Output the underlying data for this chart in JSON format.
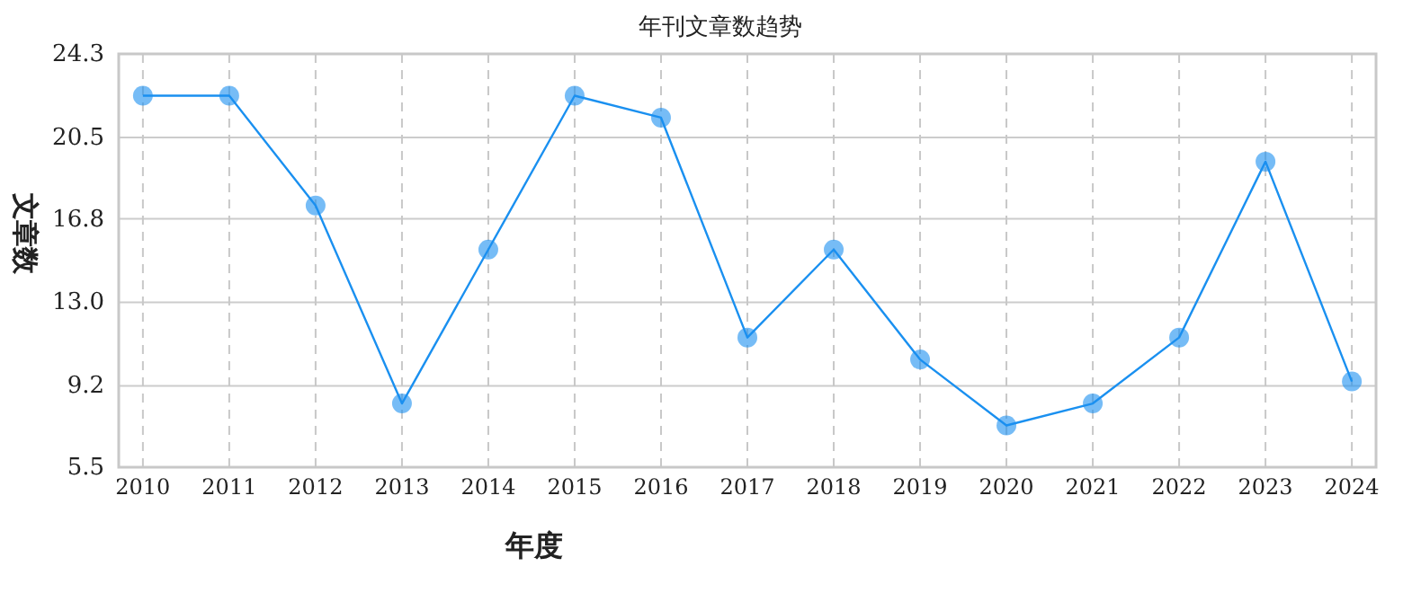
{
  "chart_data": {
    "type": "line",
    "title": "年刊文章数趋势",
    "xlabel": "年度",
    "ylabel": "文章数",
    "categories": [
      "2010",
      "2011",
      "2012",
      "2013",
      "2014",
      "2015",
      "2016",
      "2017",
      "2018",
      "2019",
      "2020",
      "2021",
      "2022",
      "2023",
      "2024"
    ],
    "series": [
      {
        "color": "#1a90f0",
        "values": [
          22.4,
          22.4,
          17.4,
          8.4,
          15.4,
          22.4,
          21.4,
          11.4,
          15.4,
          10.4,
          7.4,
          8.4,
          11.4,
          19.4,
          9.4
        ]
      }
    ],
    "ylim": [
      5.5,
      24.3
    ],
    "yticks": [
      5.5,
      9.2,
      {
        "value": 13.0,
        "label": "13.0"
      },
      16.8,
      20.5,
      24.3
    ],
    "grid": true,
    "marker": "circle",
    "line_style": "solid"
  }
}
